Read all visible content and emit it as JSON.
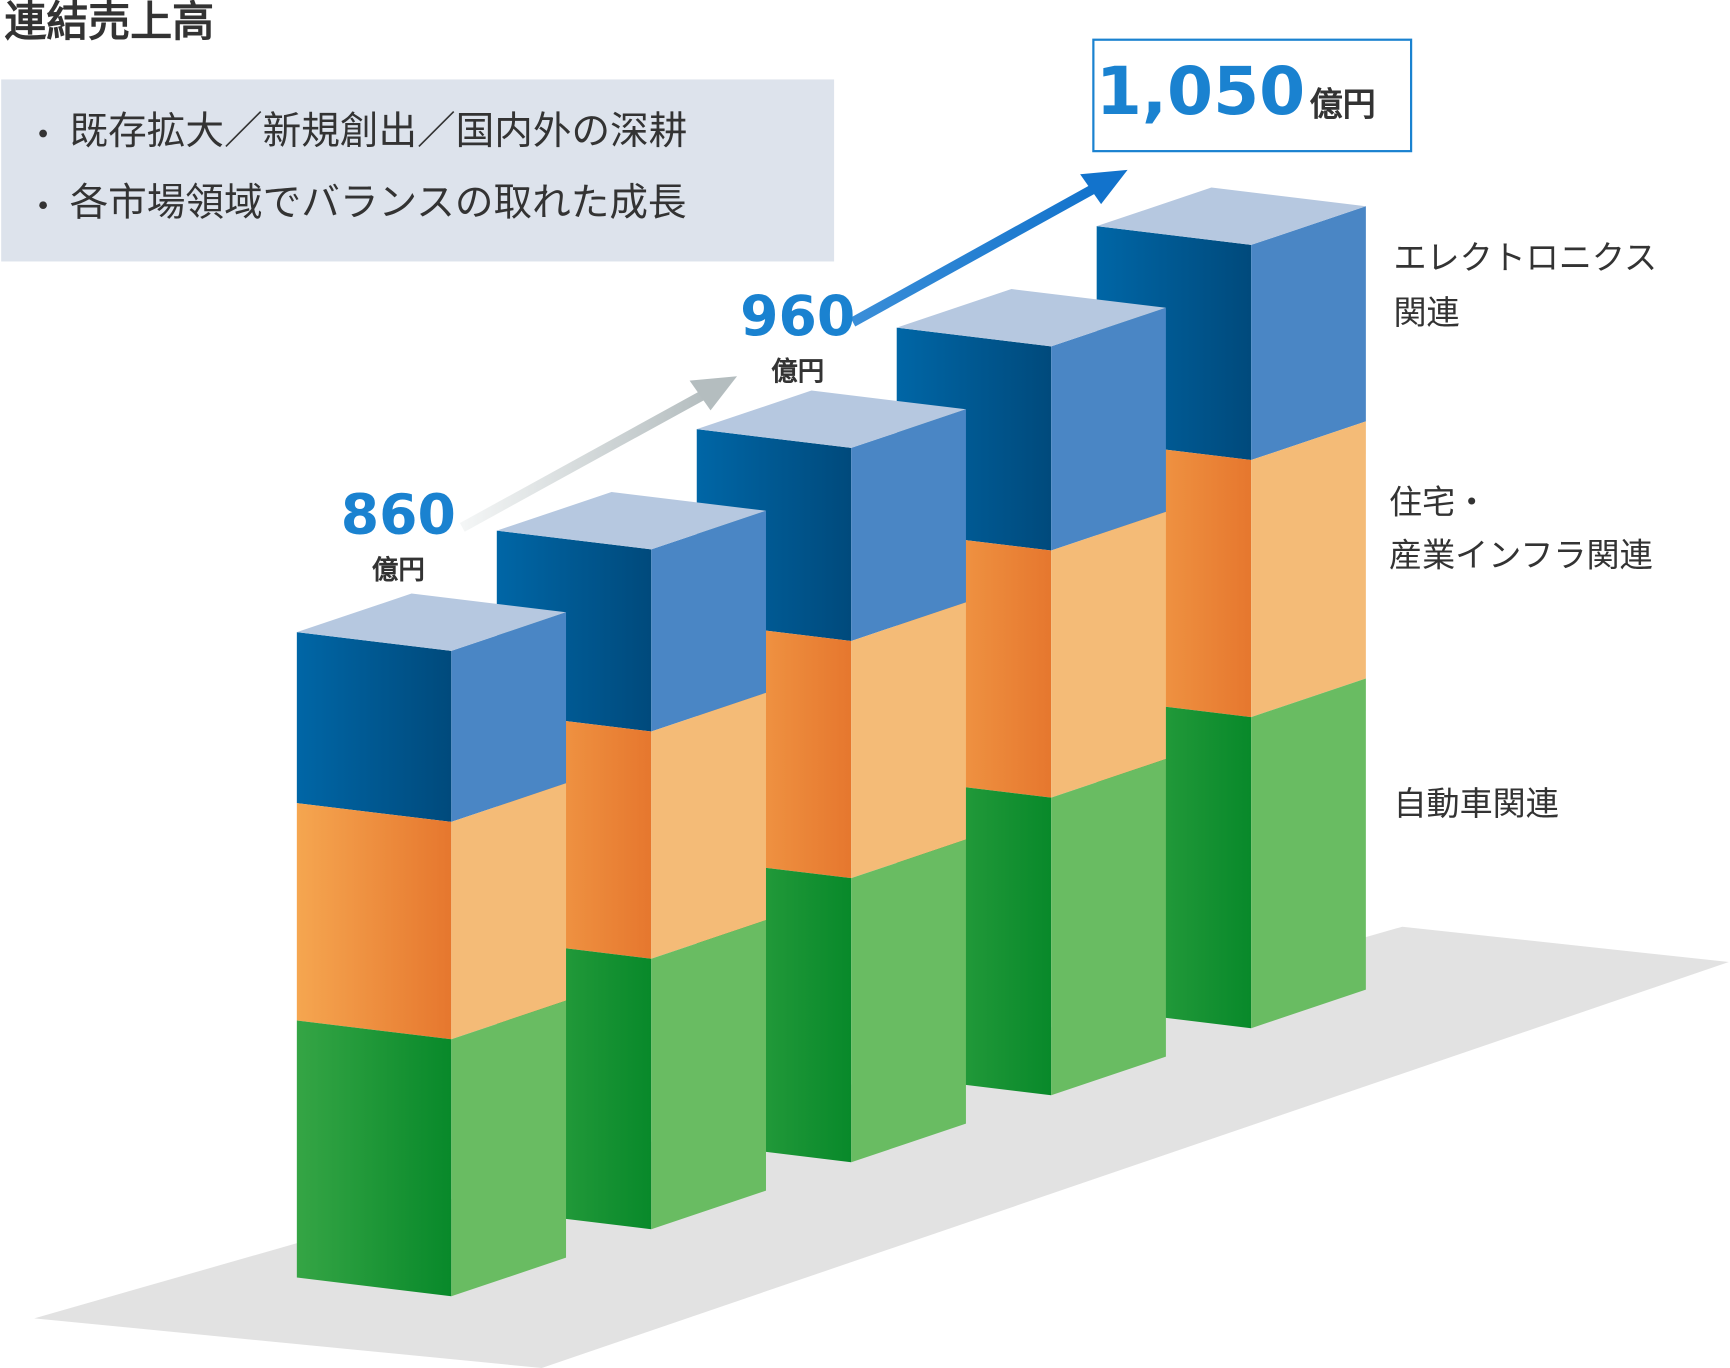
{
  "title": "連結売上高",
  "bullets": [
    "既存拡大／新規創出／国内外の深耕",
    "各市場領域でバランスの取れた成長"
  ],
  "totals": [
    {
      "value": "860",
      "unit": "億円"
    },
    {
      "value": "960",
      "unit": "億円"
    },
    {
      "value": "1,050",
      "unit": "億円"
    }
  ],
  "legend": [
    {
      "lines": [
        "エレクトロニクス",
        "関連"
      ]
    },
    {
      "lines": [
        "住宅・",
        "産業インフラ関連"
      ]
    },
    {
      "lines": [
        "自動車関連"
      ]
    }
  ]
}
